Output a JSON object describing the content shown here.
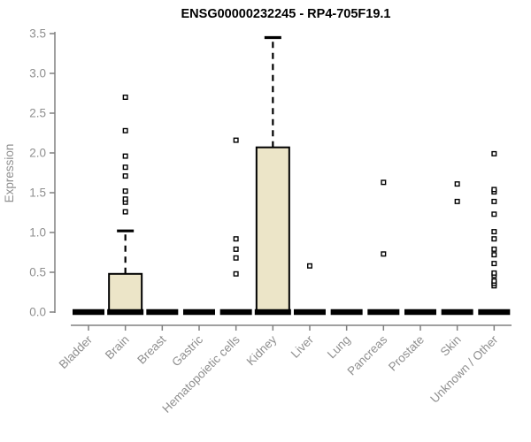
{
  "page": {
    "background": "#ffffff"
  },
  "chart_data": {
    "type": "boxplot",
    "title": "ENSG00000232245 - RP4-705F19.1",
    "ylabel": "Expression",
    "xlabel": "",
    "ylim": [
      0,
      3.5
    ],
    "grid": false,
    "legend": "none",
    "yticks": [
      0.0,
      0.5,
      1.0,
      1.5,
      2.0,
      2.5,
      3.0,
      3.5
    ],
    "ytick_labels": [
      "0.0",
      "0.5",
      "1.0",
      "1.5",
      "2.0",
      "2.5",
      "3.0",
      "3.5"
    ],
    "categories": [
      "Bladder",
      "Brain",
      "Breast",
      "Gastric",
      "Hematopoietic cells",
      "Kidney",
      "Liver",
      "Lung",
      "Pancreas",
      "Prostate",
      "Skin",
      "Unknown / Other"
    ],
    "series": [
      {
        "name": "Bladder",
        "whisker_low": 0,
        "q1": 0,
        "median": 0,
        "q3": 0,
        "whisker_high": 0,
        "outliers": []
      },
      {
        "name": "Brain",
        "whisker_low": 0,
        "q1": 0,
        "median": 0,
        "q3": 0.48,
        "whisker_high": 1.02,
        "outliers": [
          1.26,
          1.38,
          1.42,
          1.52,
          1.71,
          1.82,
          1.96,
          2.28,
          2.7
        ]
      },
      {
        "name": "Breast",
        "whisker_low": 0,
        "q1": 0,
        "median": 0,
        "q3": 0,
        "whisker_high": 0,
        "outliers": []
      },
      {
        "name": "Gastric",
        "whisker_low": 0,
        "q1": 0,
        "median": 0,
        "q3": 0,
        "whisker_high": 0,
        "outliers": []
      },
      {
        "name": "Hematopoietic cells",
        "whisker_low": 0,
        "q1": 0,
        "median": 0,
        "q3": 0,
        "whisker_high": 0,
        "outliers": [
          0.48,
          0.68,
          0.79,
          0.92,
          2.16
        ]
      },
      {
        "name": "Kidney",
        "whisker_low": 0,
        "q1": 0,
        "median": 0,
        "q3": 2.07,
        "whisker_high": 3.45,
        "outliers": []
      },
      {
        "name": "Liver",
        "whisker_low": 0,
        "q1": 0,
        "median": 0,
        "q3": 0,
        "whisker_high": 0,
        "outliers": [
          0.58
        ]
      },
      {
        "name": "Lung",
        "whisker_low": 0,
        "q1": 0,
        "median": 0,
        "q3": 0,
        "whisker_high": 0,
        "outliers": []
      },
      {
        "name": "Pancreas",
        "whisker_low": 0,
        "q1": 0,
        "median": 0,
        "q3": 0,
        "whisker_high": 0,
        "outliers": [
          0.73,
          1.63
        ]
      },
      {
        "name": "Prostate",
        "whisker_low": 0,
        "q1": 0,
        "median": 0,
        "q3": 0,
        "whisker_high": 0,
        "outliers": []
      },
      {
        "name": "Skin",
        "whisker_low": 0,
        "q1": 0,
        "median": 0,
        "q3": 0,
        "whisker_high": 0,
        "outliers": [
          1.39,
          1.61
        ]
      },
      {
        "name": "Unknown / Other",
        "whisker_low": 0,
        "q1": 0,
        "median": 0,
        "q3": 0,
        "whisker_high": 0,
        "outliers": [
          0.33,
          0.36,
          0.39,
          0.46,
          0.49,
          0.61,
          0.72,
          0.79,
          0.92,
          1.01,
          1.23,
          1.39,
          1.51,
          1.54,
          1.99
        ]
      }
    ],
    "colors": {
      "box_fill": "#ece5c8",
      "box_stroke": "#000000",
      "median_color": "#000000",
      "whisker_color": "#000000",
      "outlier_stroke": "#000000",
      "outlier_fill": "#ffffff",
      "axis_color": "#808080",
      "label_color": "#8f8f8f",
      "title_color": "#000000"
    }
  }
}
